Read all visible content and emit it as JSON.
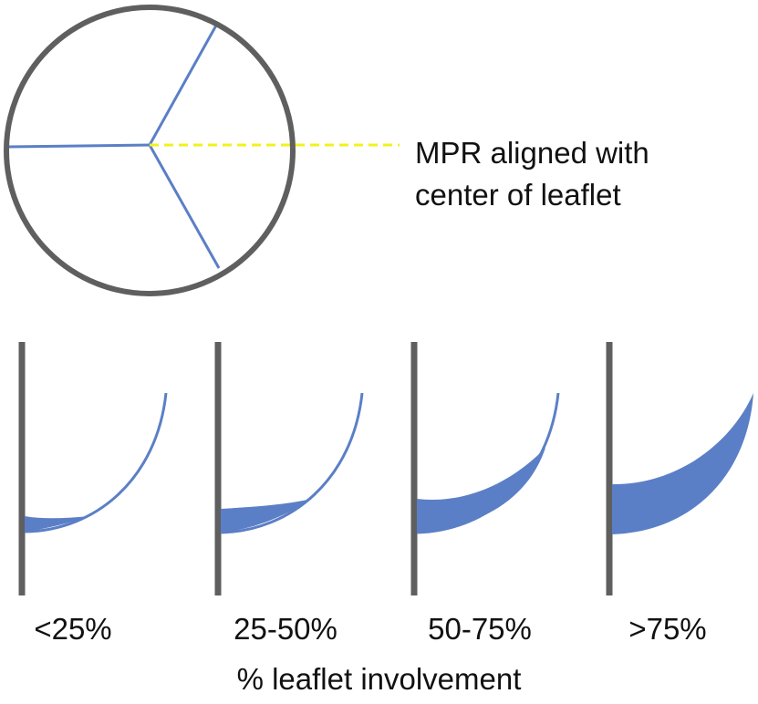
{
  "colors": {
    "outline": "#5f5f5f",
    "commissure": "#5b7fc6",
    "fill": "#5b7fc6",
    "mpr_line": "#f2f21c",
    "text": "#111111"
  },
  "mpr_annotation": {
    "line1": "MPR aligned with",
    "line2": "center of leaflet"
  },
  "categories": [
    {
      "label": "<25%",
      "involvement": 0.125
    },
    {
      "label": "25-50%",
      "involvement": 0.375
    },
    {
      "label": "50-75%",
      "involvement": 0.625
    },
    {
      "label": ">75%",
      "involvement": 0.875
    }
  ],
  "axis_label": "% leaflet involvement"
}
